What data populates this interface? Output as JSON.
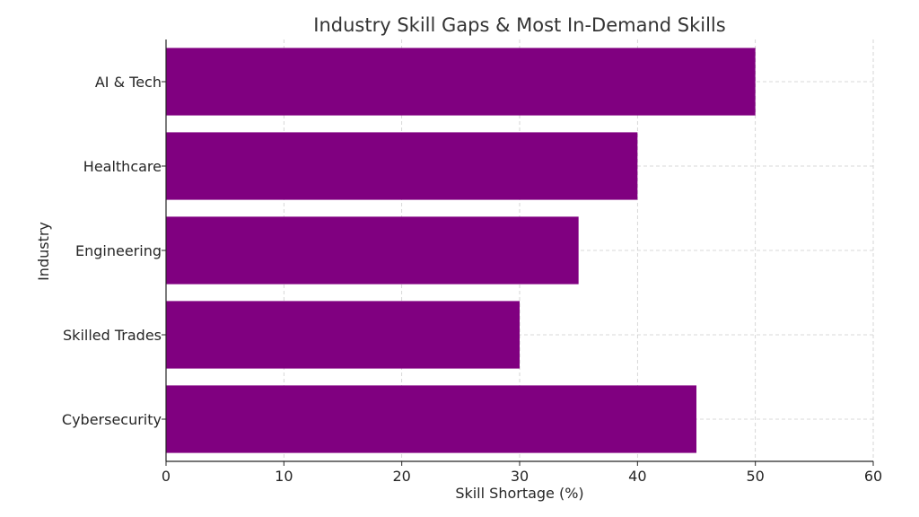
{
  "chart_data": {
    "type": "bar",
    "orientation": "horizontal",
    "title": "Industry Skill Gaps & Most In-Demand Skills",
    "xlabel": "Skill Shortage (%)",
    "ylabel": "Industry",
    "categories": [
      "AI & Tech",
      "Healthcare",
      "Engineering",
      "Skilled Trades",
      "Cybersecurity"
    ],
    "values": [
      50,
      40,
      35,
      30,
      45
    ],
    "xlim": [
      0,
      60
    ],
    "xticks": [
      0,
      10,
      20,
      30,
      40,
      50,
      60
    ],
    "grid": true,
    "bar_color": "#800080"
  }
}
